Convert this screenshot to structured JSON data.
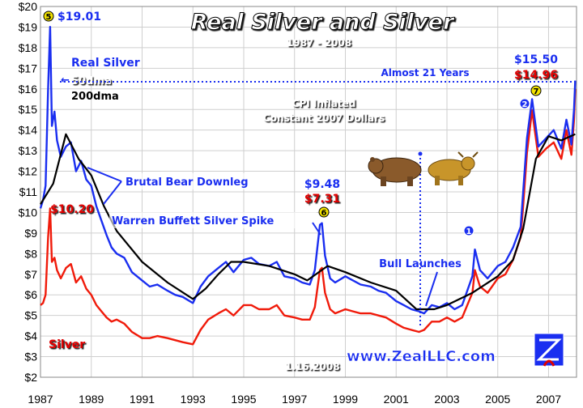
{
  "chart_data": {
    "type": "line",
    "title": "Real Silver and Silver",
    "subtitle": "1987 - 2008",
    "ylim": [
      2,
      20
    ],
    "xlim": [
      1987.0,
      2008.1
    ],
    "y_ticks": [
      "$2",
      "$3",
      "$4",
      "$5",
      "$6",
      "$7",
      "$8",
      "$9",
      "$10",
      "$11",
      "$12",
      "$13",
      "$14",
      "$15",
      "$16",
      "$17",
      "$18",
      "$19",
      "$20"
    ],
    "x_ticks": [
      "1987",
      "1989",
      "1991",
      "1993",
      "1995",
      "1997",
      "1999",
      "2001",
      "2003",
      "2005",
      "2007"
    ],
    "grid": true,
    "colors": {
      "real_silver": "#1a2ef0",
      "silver": "#f01a0a",
      "ma200": "#000000",
      "accent_blue": "#1a2ef0",
      "accent_red": "#e00000",
      "background": "#ffffff",
      "grid": "#cfcfcf"
    },
    "series": [
      {
        "name": "Real Silver",
        "color": "#1a2ef0",
        "x": [
          1987.0,
          1987.1,
          1987.2,
          1987.3,
          1987.38,
          1987.45,
          1987.55,
          1987.65,
          1987.8,
          1988.0,
          1988.2,
          1988.4,
          1988.6,
          1988.8,
          1989.0,
          1989.2,
          1989.4,
          1989.6,
          1989.8,
          1990.0,
          1990.3,
          1990.6,
          1991.0,
          1991.3,
          1991.6,
          1992.0,
          1992.3,
          1992.6,
          1993.0,
          1993.3,
          1993.6,
          1994.0,
          1994.3,
          1994.6,
          1995.0,
          1995.3,
          1995.6,
          1996.0,
          1996.3,
          1996.6,
          1997.0,
          1997.3,
          1997.6,
          1997.8,
          1998.0,
          1998.08,
          1998.2,
          1998.4,
          1998.6,
          1999.0,
          1999.3,
          1999.6,
          2000.0,
          2000.3,
          2000.6,
          2001.0,
          2001.3,
          2001.6,
          2001.9,
          2002.1,
          2002.4,
          2002.7,
          2003.0,
          2003.3,
          2003.6,
          2004.0,
          2004.1,
          2004.3,
          2004.6,
          2005.0,
          2005.3,
          2005.6,
          2005.9,
          2006.0,
          2006.15,
          2006.35,
          2006.6,
          2006.9,
          2007.2,
          2007.5,
          2007.7,
          2007.9,
          2008.0,
          2008.05
        ],
        "values": [
          10.2,
          10.6,
          11.3,
          16.0,
          19.01,
          14.2,
          14.9,
          13.5,
          12.7,
          13.2,
          13.4,
          12.0,
          12.5,
          11.6,
          11.3,
          10.3,
          9.6,
          8.9,
          8.3,
          8.0,
          7.8,
          7.1,
          6.7,
          6.4,
          6.5,
          6.2,
          6.0,
          5.9,
          5.6,
          6.4,
          6.9,
          7.3,
          7.6,
          7.1,
          7.7,
          7.8,
          7.5,
          7.4,
          7.6,
          6.9,
          6.8,
          6.6,
          6.5,
          7.2,
          9.4,
          9.48,
          7.9,
          6.8,
          6.6,
          6.9,
          6.7,
          6.5,
          6.4,
          6.2,
          6.1,
          5.7,
          5.5,
          5.3,
          5.2,
          5.1,
          5.5,
          5.4,
          5.6,
          5.3,
          5.5,
          6.9,
          8.2,
          7.2,
          6.8,
          7.4,
          7.6,
          8.3,
          9.3,
          11.0,
          13.6,
          15.5,
          13.2,
          13.6,
          14.0,
          13.1,
          14.5,
          13.3,
          15.0,
          16.4
        ]
      },
      {
        "name": "Silver",
        "color": "#f01a0a",
        "x": [
          1987.0,
          1987.1,
          1987.2,
          1987.3,
          1987.38,
          1987.45,
          1987.55,
          1987.65,
          1987.8,
          1988.0,
          1988.2,
          1988.4,
          1988.6,
          1988.8,
          1989.0,
          1989.2,
          1989.4,
          1989.6,
          1989.8,
          1990.0,
          1990.3,
          1990.6,
          1991.0,
          1991.3,
          1991.6,
          1992.0,
          1992.3,
          1992.6,
          1993.0,
          1993.3,
          1993.6,
          1994.0,
          1994.3,
          1994.6,
          1995.0,
          1995.3,
          1995.6,
          1996.0,
          1996.3,
          1996.6,
          1997.0,
          1997.3,
          1997.6,
          1997.8,
          1998.0,
          1998.08,
          1998.2,
          1998.4,
          1998.6,
          1999.0,
          1999.3,
          1999.6,
          2000.0,
          2000.3,
          2000.6,
          2001.0,
          2001.3,
          2001.6,
          2001.9,
          2002.1,
          2002.4,
          2002.7,
          2003.0,
          2003.3,
          2003.6,
          2004.0,
          2004.1,
          2004.3,
          2004.6,
          2005.0,
          2005.3,
          2005.6,
          2005.9,
          2006.0,
          2006.15,
          2006.35,
          2006.6,
          2006.9,
          2007.2,
          2007.5,
          2007.7,
          2007.9,
          2008.0,
          2008.05
        ],
        "values": [
          5.5,
          5.6,
          6.0,
          8.8,
          10.2,
          7.6,
          7.8,
          7.2,
          6.8,
          7.3,
          7.5,
          6.6,
          6.9,
          6.3,
          6.0,
          5.5,
          5.2,
          4.9,
          4.7,
          4.8,
          4.6,
          4.2,
          3.9,
          3.9,
          4.0,
          3.9,
          3.8,
          3.7,
          3.6,
          4.3,
          4.8,
          5.1,
          5.3,
          5.0,
          5.5,
          5.5,
          5.3,
          5.3,
          5.5,
          5.0,
          4.9,
          4.8,
          4.8,
          5.4,
          7.2,
          7.31,
          6.1,
          5.3,
          5.1,
          5.3,
          5.2,
          5.1,
          5.1,
          5.0,
          4.9,
          4.6,
          4.4,
          4.3,
          4.2,
          4.3,
          4.7,
          4.7,
          4.9,
          4.7,
          4.9,
          6.1,
          7.2,
          6.4,
          6.1,
          6.8,
          7.0,
          7.7,
          8.8,
          10.3,
          12.9,
          14.96,
          12.7,
          13.1,
          13.4,
          12.6,
          14.0,
          12.8,
          14.5,
          16.0
        ]
      },
      {
        "name": "200dma",
        "color": "#000000",
        "x": [
          1987.0,
          1987.5,
          1988.0,
          1988.5,
          1989.0,
          1989.5,
          1990.0,
          1991.0,
          1992.0,
          1993.0,
          1993.5,
          1994.0,
          1994.5,
          1995.0,
          1996.0,
          1997.0,
          1997.5,
          1998.3,
          1999.0,
          2000.0,
          2001.0,
          2001.8,
          2002.5,
          2003.0,
          2004.0,
          2005.0,
          2005.6,
          2006.0,
          2006.5,
          2007.0,
          2007.5,
          2008.05
        ],
        "values": [
          10.4,
          11.4,
          13.8,
          12.6,
          11.8,
          10.3,
          9.1,
          7.6,
          6.6,
          5.8,
          6.3,
          7.0,
          7.6,
          7.6,
          7.4,
          7.0,
          6.7,
          7.4,
          7.1,
          6.6,
          6.2,
          5.3,
          5.3,
          5.5,
          6.1,
          6.9,
          7.7,
          9.2,
          12.6,
          13.7,
          13.5,
          13.8
        ]
      }
    ],
    "annotations": {
      "badge_5": "5",
      "peak_real_5": "$19.01",
      "label_real_silver": "Real Silver",
      "label_50dma": "50dma",
      "label_200dma": "200dma",
      "cpi_line1": "CPI Inflated",
      "cpi_line2": "Constant 2007 Dollars",
      "almost_21": "Almost 21 Years",
      "peak_real_7": "$15.50",
      "peak_nom_7": "$14.96",
      "badge_7": "7",
      "badge_2": "2",
      "badge_1": "1",
      "brutal": "Brutal Bear Downleg",
      "peak_real_6": "$9.48",
      "peak_nom_6": "$7.31",
      "badge_6": "6",
      "nom_start": "$10.20",
      "buffett": "Warren Buffett Silver Spike",
      "bull": "Bull Launches",
      "silver_label": "Silver",
      "date": "1.16.2008",
      "website": "www.ZealLLC.com"
    }
  }
}
